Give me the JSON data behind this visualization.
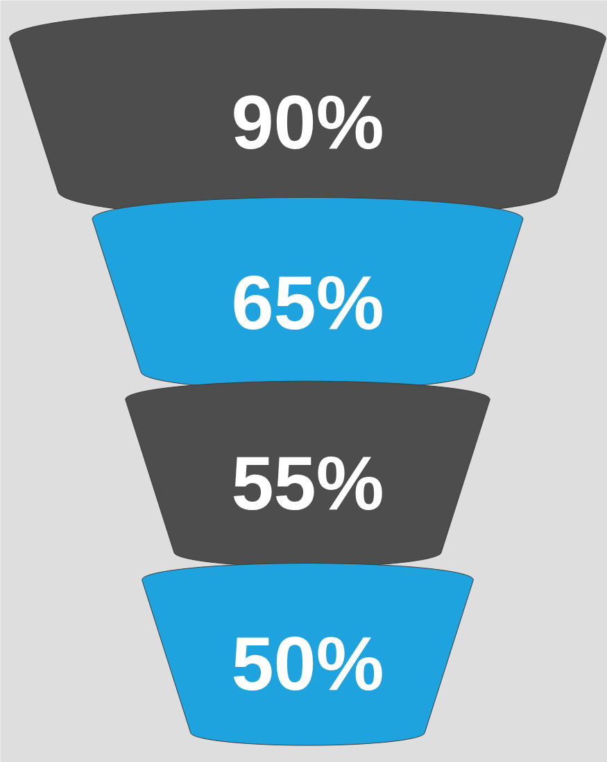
{
  "chart_data": {
    "type": "other",
    "values": [
      90,
      65,
      55,
      50
    ],
    "value_labels": [
      "90%",
      "65%",
      "55%",
      "50%"
    ],
    "colors": [
      "#4d4d4d",
      "#1fa3de",
      "#4d4d4d",
      "#1fa3de"
    ]
  }
}
